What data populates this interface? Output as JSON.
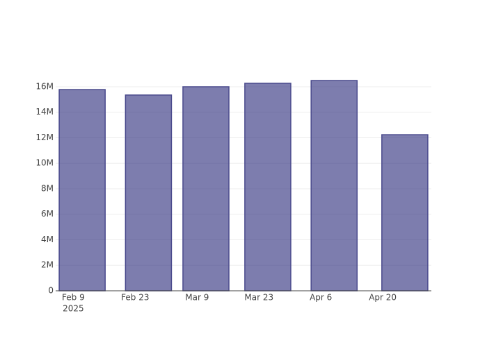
{
  "chart_data": {
    "type": "bar",
    "x": [
      "2025-02-11",
      "2025-02-26",
      "2025-03-11",
      "2025-03-25",
      "2025-04-09",
      "2025-04-25"
    ],
    "values": [
      15780000,
      15350000,
      16000000,
      16270000,
      16490000,
      12240000
    ],
    "color": "rgba(55,55,130,0.65)",
    "edge_color": "#4a4a8c",
    "xlim": [
      "2025-02-05",
      "2025-05-01"
    ],
    "xticks": [
      {
        "value": "2025-02-09",
        "label": "Feb 9"
      },
      {
        "value": "2025-02-23",
        "label": "Feb 23"
      },
      {
        "value": "2025-03-09",
        "label": "Mar 9"
      },
      {
        "value": "2025-03-23",
        "label": "Mar 23"
      },
      {
        "value": "2025-04-06",
        "label": "Apr 6"
      },
      {
        "value": "2025-04-20",
        "label": "Apr 20"
      }
    ],
    "xtick_year": "2025",
    "ylim": [
      0,
      17360000
    ],
    "yticks": [
      0,
      {
        "value": 2000000,
        "label": "2M"
      },
      {
        "value": 4000000,
        "label": "4M"
      },
      {
        "value": 6000000,
        "label": "6M"
      },
      {
        "value": 8000000,
        "label": "8M"
      },
      {
        "value": 10000000,
        "label": "10M"
      },
      {
        "value": 12000000,
        "label": "12M"
      },
      {
        "value": 14000000,
        "label": "14M"
      },
      {
        "value": 16000000,
        "label": "16M"
      }
    ],
    "grid": true
  }
}
